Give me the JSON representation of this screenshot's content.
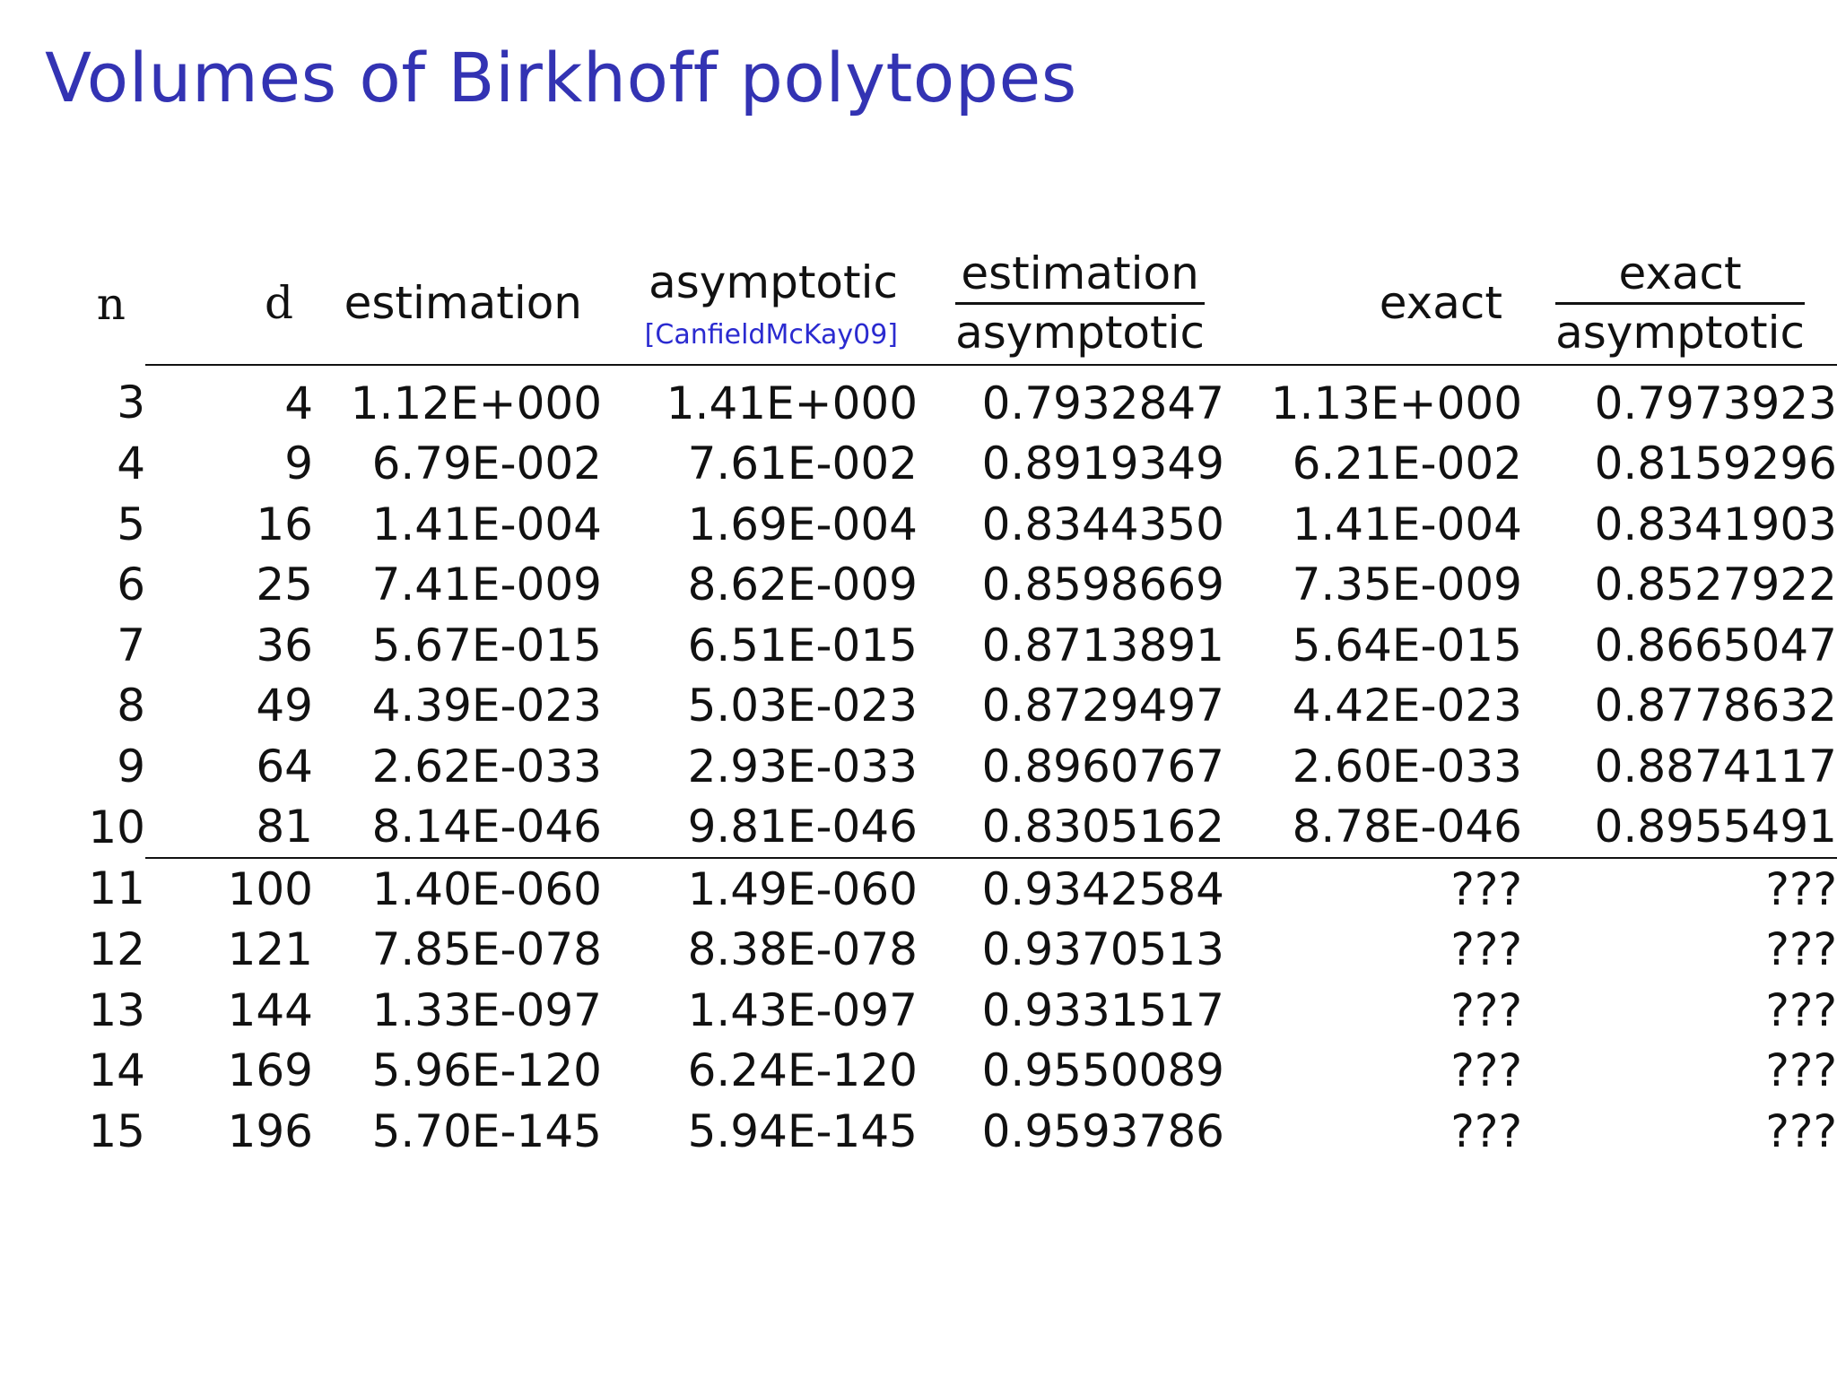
{
  "title": "Volumes of Birkhoff polytopes",
  "table": {
    "headers": {
      "n": "n",
      "d": "d",
      "estimation": "estimation",
      "asymptotic": "asymptotic",
      "asymptotic_cite": "[CanfieldMcKay09]",
      "ratio1_num": "estimation",
      "ratio1_den": "asymptotic",
      "exact": "exact",
      "ratio2_num": "exact",
      "ratio2_den": "asymptotic"
    },
    "rows": [
      {
        "n": "3",
        "d": "4",
        "estimation": "1.12E+000",
        "asymptotic": "1.41E+000",
        "ratio1": "0.7932847",
        "exact": "1.13E+000",
        "ratio2": "0.7973923"
      },
      {
        "n": "4",
        "d": "9",
        "estimation": "6.79E-002",
        "asymptotic": "7.61E-002",
        "ratio1": "0.8919349",
        "exact": "6.21E-002",
        "ratio2": "0.8159296"
      },
      {
        "n": "5",
        "d": "16",
        "estimation": "1.41E-004",
        "asymptotic": "1.69E-004",
        "ratio1": "0.8344350",
        "exact": "1.41E-004",
        "ratio2": "0.8341903"
      },
      {
        "n": "6",
        "d": "25",
        "estimation": "7.41E-009",
        "asymptotic": "8.62E-009",
        "ratio1": "0.8598669",
        "exact": "7.35E-009",
        "ratio2": "0.8527922"
      },
      {
        "n": "7",
        "d": "36",
        "estimation": "5.67E-015",
        "asymptotic": "6.51E-015",
        "ratio1": "0.8713891",
        "exact": "5.64E-015",
        "ratio2": "0.8665047"
      },
      {
        "n": "8",
        "d": "49",
        "estimation": "4.39E-023",
        "asymptotic": "5.03E-023",
        "ratio1": "0.8729497",
        "exact": "4.42E-023",
        "ratio2": "0.8778632"
      },
      {
        "n": "9",
        "d": "64",
        "estimation": "2.62E-033",
        "asymptotic": "2.93E-033",
        "ratio1": "0.8960767",
        "exact": "2.60E-033",
        "ratio2": "0.8874117"
      },
      {
        "n": "10",
        "d": "81",
        "estimation": "8.14E-046",
        "asymptotic": "9.81E-046",
        "ratio1": "0.8305162",
        "exact": "8.78E-046",
        "ratio2": "0.8955491"
      },
      {
        "n": "11",
        "d": "100",
        "estimation": "1.40E-060",
        "asymptotic": "1.49E-060",
        "ratio1": "0.9342584",
        "exact": "???",
        "ratio2": "???"
      },
      {
        "n": "12",
        "d": "121",
        "estimation": "7.85E-078",
        "asymptotic": "8.38E-078",
        "ratio1": "0.9370513",
        "exact": "???",
        "ratio2": "???"
      },
      {
        "n": "13",
        "d": "144",
        "estimation": "1.33E-097",
        "asymptotic": "1.43E-097",
        "ratio1": "0.9331517",
        "exact": "???",
        "ratio2": "???"
      },
      {
        "n": "14",
        "d": "169",
        "estimation": "5.96E-120",
        "asymptotic": "6.24E-120",
        "ratio1": "0.9550089",
        "exact": "???",
        "ratio2": "???"
      },
      {
        "n": "15",
        "d": "196",
        "estimation": "5.70E-145",
        "asymptotic": "5.94E-145",
        "ratio1": "0.9593786",
        "exact": "???",
        "ratio2": "???"
      }
    ]
  },
  "colors": {
    "title": "#3333b3",
    "citation": "#2b2bd0",
    "text": "#111111"
  }
}
